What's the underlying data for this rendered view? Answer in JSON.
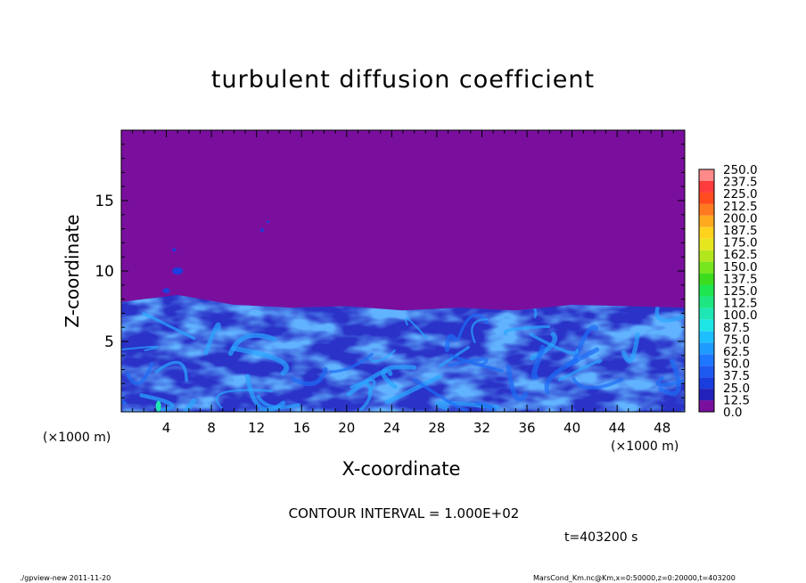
{
  "chart_data": {
    "type": "heatmap",
    "title": "turbulent diffusion coefficient",
    "xlabel": "X-coordinate",
    "ylabel": "Z-coordinate",
    "x_unit_label": "(×1000 m)",
    "x_unit_label_right": "(×1000 m)",
    "xlim": [
      0,
      50
    ],
    "ylim": [
      0,
      20
    ],
    "x_ticks": [
      "4",
      "8",
      "12",
      "16",
      "20",
      "24",
      "28",
      "32",
      "36",
      "40",
      "44",
      "48"
    ],
    "x_tick_values": [
      4,
      8,
      12,
      16,
      20,
      24,
      28,
      32,
      36,
      40,
      44,
      48
    ],
    "y_ticks": [
      "5",
      "10",
      "15"
    ],
    "y_tick_values": [
      5,
      10,
      15
    ],
    "colorbar": {
      "labels": [
        "0.0",
        "12.5",
        "25.0",
        "37.5",
        "50.0",
        "62.5",
        "75.0",
        "87.5",
        "100.0",
        "112.5",
        "125.0",
        "137.5",
        "150.0",
        "162.5",
        "175.0",
        "187.5",
        "200.0",
        "212.5",
        "225.0",
        "237.5",
        "250.0"
      ],
      "colors": [
        "#7a0f9e",
        "#2222bb",
        "#1a3ddd",
        "#1e5af0",
        "#1e78ff",
        "#1e9bff",
        "#1ebfff",
        "#1ee6e6",
        "#1ee6b4",
        "#1ee682",
        "#1ee650",
        "#3cdc1e",
        "#78e61e",
        "#b4e61e",
        "#e6e61e",
        "#ffd21e",
        "#ffaa1e",
        "#ff7a1e",
        "#ff4b1e",
        "#ff3c3c",
        "#ff8a8a"
      ]
    },
    "field_summary": {
      "background_value": 0.0,
      "turbulent_layer_top_z": [
        7.8,
        8.3,
        7.6,
        7.4,
        7.5,
        7.2,
        7.4,
        7.2,
        7.6,
        7.5,
        7.4
      ],
      "turbulent_layer_x": [
        0,
        5,
        10,
        15,
        20,
        25,
        30,
        35,
        40,
        45,
        50
      ],
      "typical_layer_value": 37.5,
      "max_value_location": {
        "x": 3.3,
        "z": 0.4,
        "value": 87.5
      }
    },
    "contour_interval_text": "CONTOUR INTERVAL = 1.000E+02",
    "time_text": "t=403200 s"
  },
  "footer": {
    "program": "./gpview-new   2011-11-20",
    "source": "MarsCond_Km.nc@Km,x=0:50000,z=0:20000,t=403200"
  }
}
